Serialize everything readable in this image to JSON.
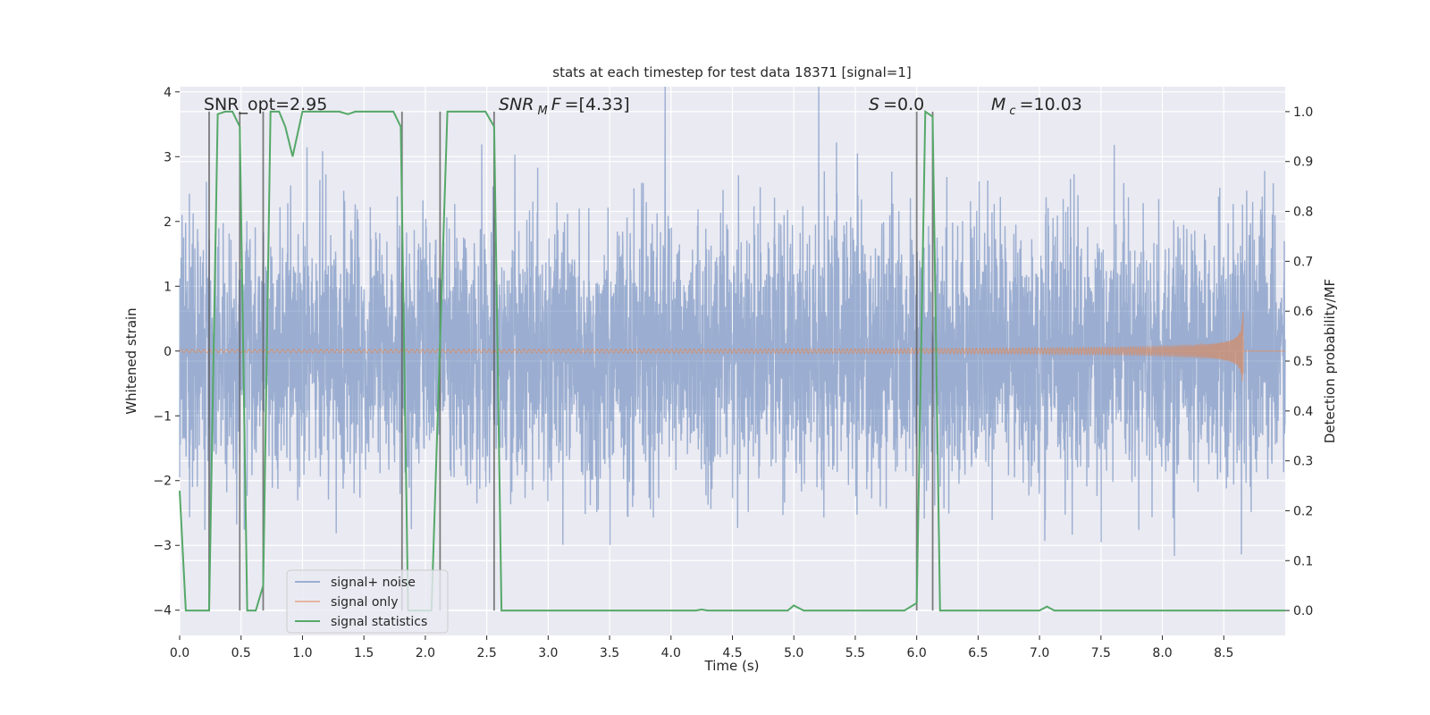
{
  "chart_data": {
    "type": "line",
    "title": "stats at each timestep for test data 18371 [signal=1]",
    "xlabel": "Time (s)",
    "ylabel": "Whitened strain",
    "ylabel_right": "Detection probability/MF",
    "xlim": [
      0,
      9.0
    ],
    "ylim": [
      -4.39,
      4.08
    ],
    "ylim_right": [
      -0.05,
      1.05
    ],
    "xticks": [
      "0.0",
      "0.5",
      "1.0",
      "1.5",
      "2.0",
      "2.5",
      "3.0",
      "3.5",
      "4.0",
      "4.5",
      "5.0",
      "5.5",
      "6.0",
      "6.5",
      "7.0",
      "7.5",
      "8.0",
      "8.5"
    ],
    "yticks": [
      "4",
      "3",
      "2",
      "1",
      "0",
      "−1",
      "−2",
      "−3",
      "−4"
    ],
    "yticks_right": [
      "1.0",
      "0.9",
      "0.8",
      "0.7",
      "0.6",
      "0.5",
      "0.4",
      "0.3",
      "0.2",
      "0.1",
      "0.0"
    ],
    "grid": true,
    "legend_position": "lower-left",
    "series": [
      {
        "name": "signal+ noise",
        "color": "#4c72b0",
        "axis": "left",
        "noise_std": 1.0
      },
      {
        "name": "signal only",
        "color": "#dd8452",
        "axis": "left",
        "chirp_end_time": 8.66,
        "peak_amplitude": 0.6
      },
      {
        "name": "signal statistics",
        "color": "#55a868",
        "axis": "right",
        "x": [
          0,
          0.05,
          0.24,
          0.31,
          0.37,
          0.43,
          0.49,
          0.55,
          0.62,
          0.68,
          0.74,
          0.81,
          0.86,
          0.92,
          1.0,
          1.3,
          1.37,
          1.43,
          1.74,
          1.8,
          1.86,
          2.05,
          2.18,
          2.49,
          2.56,
          2.62,
          4.2,
          4.25,
          4.3,
          4.95,
          5.0,
          5.08,
          5.9,
          6.0,
          6.07,
          6.13,
          6.19,
          7.0,
          7.06,
          7.12,
          9.0
        ],
        "y": [
          0.24,
          0,
          0,
          0.995,
          1.0,
          1.0,
          0.97,
          0,
          0,
          0.05,
          1.0,
          1.0,
          0.97,
          0.91,
          1.0,
          1.0,
          0.995,
          1.0,
          1.0,
          0.97,
          0,
          0,
          1.0,
          1.0,
          0.97,
          0,
          0,
          0.002,
          0,
          0,
          0.01,
          0,
          0,
          0.015,
          1.0,
          0.99,
          0,
          0,
          0.008,
          0,
          0
        ]
      }
    ],
    "vertical_markers": [
      0.24,
      0.49,
      0.68,
      1.81,
      2.12,
      2.56,
      6.0,
      6.13
    ],
    "annotations": {
      "snr_opt": "SNR_opt=2.95",
      "snr_mf": {
        "sym": "SNR",
        "sub": "M",
        "sym2": "F",
        "value": "=[4.33]"
      },
      "s": {
        "sym": "S",
        "value": "=0.0"
      },
      "mc": {
        "sym": "M",
        "sub": "c",
        "value": "=10.03"
      }
    }
  }
}
